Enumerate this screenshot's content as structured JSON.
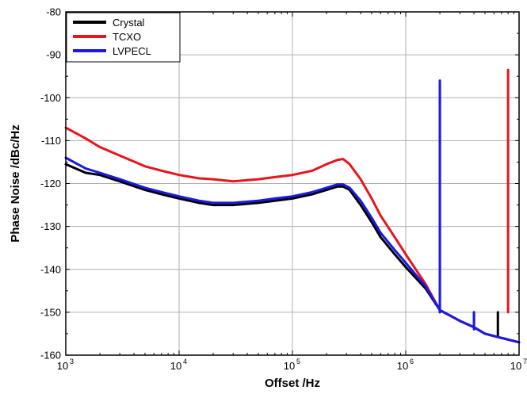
{
  "chart_data": {
    "type": "line",
    "xlabel": "Offset /Hz",
    "ylabel": "Phase Noise /dBc/Hz",
    "xscale": "log",
    "xlim": [
      1000,
      10000000
    ],
    "ylim": [
      -160,
      -80
    ],
    "x_ticks": [
      {
        "base": "10",
        "exp": "3"
      },
      {
        "base": "10",
        "exp": "4"
      },
      {
        "base": "10",
        "exp": "5"
      },
      {
        "base": "10",
        "exp": "6"
      },
      {
        "base": "10",
        "exp": "7"
      }
    ],
    "y_ticks": [
      "-80",
      "-90",
      "-100",
      "-110",
      "-120",
      "-130",
      "-140",
      "-150",
      "-160"
    ],
    "grid": true,
    "legend_position": "top-left",
    "series": [
      {
        "name": "Crystal",
        "color": "#000000",
        "points": [
          [
            1000,
            -115.5
          ],
          [
            1500,
            -117.5
          ],
          [
            2000,
            -118
          ],
          [
            3000,
            -119.5
          ],
          [
            5000,
            -121.5
          ],
          [
            7000,
            -122.5
          ],
          [
            10000,
            -123.5
          ],
          [
            15000,
            -124.5
          ],
          [
            20000,
            -125
          ],
          [
            30000,
            -125
          ],
          [
            50000,
            -124.5
          ],
          [
            70000,
            -124
          ],
          [
            100000,
            -123.5
          ],
          [
            150000,
            -122.5
          ],
          [
            200000,
            -121.5
          ],
          [
            250000,
            -120.7
          ],
          [
            280000,
            -120.7
          ],
          [
            320000,
            -121.5
          ],
          [
            400000,
            -125
          ],
          [
            500000,
            -129
          ],
          [
            600000,
            -132.5
          ],
          [
            800000,
            -136.5
          ],
          [
            1000000,
            -139.5
          ],
          [
            1500000,
            -144.5
          ],
          [
            2000000,
            -149.5
          ],
          [
            3000000,
            -152
          ],
          [
            4000000,
            -153.5
          ],
          [
            5000000,
            -155
          ],
          [
            7000000,
            -156
          ],
          [
            10000000,
            -157
          ]
        ],
        "spikes": [
          [
            2000000,
            -97
          ],
          [
            4000000,
            -153
          ],
          [
            6500000,
            -155.5
          ]
        ]
      },
      {
        "name": "TCXO",
        "color": "#e8141b",
        "points": [
          [
            1000,
            -107
          ],
          [
            1500,
            -109.5
          ],
          [
            2000,
            -111.5
          ],
          [
            3000,
            -113.5
          ],
          [
            5000,
            -116
          ],
          [
            7000,
            -117
          ],
          [
            10000,
            -118
          ],
          [
            15000,
            -118.8
          ],
          [
            20000,
            -119
          ],
          [
            30000,
            -119.5
          ],
          [
            50000,
            -119
          ],
          [
            70000,
            -118.5
          ],
          [
            100000,
            -118
          ],
          [
            150000,
            -117
          ],
          [
            200000,
            -115.5
          ],
          [
            250000,
            -114.5
          ],
          [
            280000,
            -114.3
          ],
          [
            320000,
            -115.5
          ],
          [
            400000,
            -119
          ],
          [
            500000,
            -123.5
          ],
          [
            600000,
            -127.5
          ],
          [
            800000,
            -132.5
          ],
          [
            1000000,
            -136.5
          ],
          [
            1500000,
            -143.5
          ],
          [
            2000000,
            -149.5
          ],
          [
            3000000,
            -152
          ],
          [
            4000000,
            -153.5
          ],
          [
            5000000,
            -155
          ],
          [
            7000000,
            -156
          ],
          [
            10000000,
            -157
          ]
        ],
        "spikes": [
          [
            8000000,
            -93.5
          ]
        ]
      },
      {
        "name": "LVPECL",
        "color": "#1a1ae6",
        "points": [
          [
            1000,
            -114
          ],
          [
            1500,
            -116.5
          ],
          [
            2000,
            -117.5
          ],
          [
            3000,
            -119
          ],
          [
            5000,
            -121
          ],
          [
            7000,
            -122
          ],
          [
            10000,
            -123
          ],
          [
            15000,
            -124
          ],
          [
            20000,
            -124.5
          ],
          [
            30000,
            -124.5
          ],
          [
            50000,
            -124
          ],
          [
            70000,
            -123.5
          ],
          [
            100000,
            -123
          ],
          [
            150000,
            -122
          ],
          [
            200000,
            -121
          ],
          [
            250000,
            -120.2
          ],
          [
            280000,
            -120.2
          ],
          [
            320000,
            -121
          ],
          [
            400000,
            -124
          ],
          [
            500000,
            -128
          ],
          [
            600000,
            -131.5
          ],
          [
            800000,
            -135.5
          ],
          [
            1000000,
            -138.5
          ],
          [
            1500000,
            -144
          ],
          [
            2000000,
            -149.5
          ],
          [
            3000000,
            -152
          ],
          [
            4000000,
            -153.5
          ],
          [
            5000000,
            -155
          ],
          [
            7000000,
            -156
          ],
          [
            10000000,
            -157
          ]
        ],
        "spikes": [
          [
            2000000,
            -96
          ],
          [
            4000000,
            -154
          ]
        ]
      }
    ]
  }
}
